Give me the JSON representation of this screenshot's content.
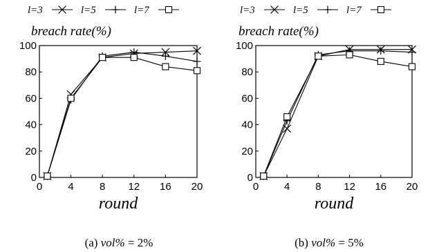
{
  "chart_data": [
    {
      "type": "line",
      "legend_title": "breach rate(%)",
      "legend_position": "top",
      "xlabel": "round",
      "caption_prefix": "(a) ",
      "caption_var": "vol%",
      "caption_suffix": " = 2%",
      "xlim": [
        0,
        20
      ],
      "ylim": [
        0,
        100
      ],
      "xticks": [
        0,
        4,
        8,
        12,
        16,
        20
      ],
      "yticks": [
        0,
        20,
        40,
        60,
        80,
        100
      ],
      "grid": false,
      "x": [
        1,
        4,
        8,
        12,
        16,
        20
      ],
      "series": [
        {
          "name": "l=3",
          "marker": "x",
          "values": [
            1,
            63,
            91,
            94,
            95,
            96
          ]
        },
        {
          "name": "l=5",
          "marker": "plus",
          "values": [
            1,
            59,
            92,
            95,
            92,
            88
          ]
        },
        {
          "name": "l=7",
          "marker": "square",
          "values": [
            1,
            60,
            91,
            91,
            84,
            81
          ]
        }
      ]
    },
    {
      "type": "line",
      "legend_title": "breach rate(%)",
      "legend_position": "top",
      "xlabel": "round",
      "caption_prefix": "(b) ",
      "caption_var": "vol%",
      "caption_suffix": " = 5%",
      "xlim": [
        0,
        20
      ],
      "ylim": [
        0,
        100
      ],
      "xticks": [
        0,
        4,
        8,
        12,
        16,
        20
      ],
      "yticks": [
        0,
        20,
        40,
        60,
        80,
        100
      ],
      "grid": false,
      "x": [
        1,
        4,
        8,
        12,
        16,
        20
      ],
      "series": [
        {
          "name": "l=3",
          "marker": "x",
          "values": [
            1,
            37,
            92,
            97,
            97,
            97
          ]
        },
        {
          "name": "l=5",
          "marker": "plus",
          "values": [
            1,
            43,
            93,
            96,
            96,
            95
          ]
        },
        {
          "name": "l=7",
          "marker": "square",
          "values": [
            1,
            46,
            92,
            93,
            88,
            84
          ]
        }
      ]
    }
  ]
}
